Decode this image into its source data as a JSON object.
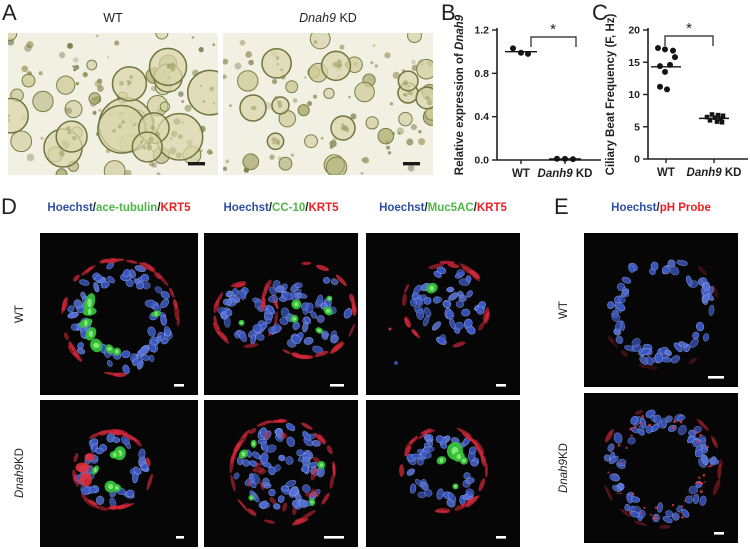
{
  "colors": {
    "text": "#231F20",
    "hoechst_blue": "#2E4FA3",
    "marker_green": "#4DB648",
    "marker_red": "#EC2024",
    "point_black": "#141414",
    "scalebar_brightfield": "#1A1A1A",
    "scalebar_confocal": "#FFFFFF"
  },
  "panel_a": {
    "label": "A",
    "images": [
      {
        "title_parts": [
          {
            "t": "WT"
          }
        ]
      },
      {
        "title_parts": [
          {
            "t": "Dnah9",
            "i": true
          },
          {
            "t": " KD"
          }
        ]
      }
    ]
  },
  "panel_b": {
    "label": "B"
  },
  "panel_c": {
    "label": "C"
  },
  "panel_d": {
    "label": "D",
    "column_headers": [
      [
        {
          "t": "Hoechst",
          "c": "#2E4FA3"
        },
        {
          "t": "/"
        },
        {
          "t": "ace-tubulin",
          "c": "#4DB648"
        },
        {
          "t": "/"
        },
        {
          "t": "KRT5",
          "c": "#EC2024"
        }
      ],
      [
        {
          "t": "Hoechst",
          "c": "#2E4FA3"
        },
        {
          "t": "/"
        },
        {
          "t": "CC-10",
          "c": "#4DB648"
        },
        {
          "t": "/"
        },
        {
          "t": "KRT5",
          "c": "#EC2024"
        }
      ],
      [
        {
          "t": "Hoechst",
          "c": "#2E4FA3"
        },
        {
          "t": "/"
        },
        {
          "t": "Muc5AC",
          "c": "#4DB648"
        },
        {
          "t": "/"
        },
        {
          "t": "KRT5",
          "c": "#EC2024"
        }
      ]
    ],
    "row_labels": [
      [
        {
          "t": "WT"
        }
      ],
      [
        {
          "t": "Dnah9",
          "i": true
        },
        {
          "t": " KD"
        }
      ]
    ]
  },
  "panel_e": {
    "label": "E",
    "header": [
      {
        "t": "Hoechst",
        "c": "#2E4FA3"
      },
      {
        "t": "/"
      },
      {
        "t": "pH Probe",
        "c": "#EC2024"
      }
    ],
    "row_labels": [
      [
        {
          "t": "WT"
        }
      ],
      [
        {
          "t": "Dnah9",
          "i": true
        },
        {
          "t": " KD"
        }
      ]
    ]
  },
  "chart_data": [
    {
      "id": "B",
      "type": "scatter",
      "title": "",
      "ylabel_parts": [
        {
          "t": "Relative expression of "
        },
        {
          "t": "Dnah9",
          "i": true
        }
      ],
      "ylabel_text": "Relative expression of Dnah9",
      "ylim": [
        0,
        1.2
      ],
      "yticks": [
        0,
        0.4,
        0.8,
        1.2
      ],
      "ytick_labels": [
        "0.0",
        "0.4",
        "0.8",
        "1.2"
      ],
      "categories": [
        [
          {
            "t": "WT"
          }
        ],
        [
          {
            "t": "Danh9",
            "i": true
          },
          {
            "t": " KD"
          }
        ]
      ],
      "series": [
        {
          "name": "WT",
          "marker": "circle",
          "values": [
            1.03,
            0.99,
            0.98
          ],
          "mean": 1.0
        },
        {
          "name": "Danh9 KD",
          "marker": "circle",
          "values": [
            0.012,
            0.01,
            0.008
          ],
          "mean": 0.01
        }
      ],
      "significance": "*",
      "grid": false,
      "legend": "none"
    },
    {
      "id": "C",
      "type": "scatter",
      "title": "",
      "ylabel_parts": [
        {
          "t": "Ciliary Beat Frequency (F, Hz)"
        }
      ],
      "ylabel_text": "Ciliary Beat Frequency (F, Hz)",
      "ylim": [
        0,
        20
      ],
      "yticks": [
        0,
        5,
        10,
        15,
        20
      ],
      "ytick_labels": [
        "0",
        "5",
        "10",
        "15",
        "20"
      ],
      "categories": [
        [
          {
            "t": "WT"
          }
        ],
        [
          {
            "t": "Danh9",
            "i": true
          },
          {
            "t": " KD"
          }
        ]
      ],
      "series": [
        {
          "name": "WT",
          "marker": "circle",
          "values": [
            17.2,
            17.0,
            16.8,
            15.8,
            14.6,
            14.4,
            13.5,
            11.2,
            10.8
          ],
          "mean": 14.3
        },
        {
          "name": "Danh9 KD",
          "marker": "square",
          "values": [
            6.9,
            6.8,
            6.7,
            6.5,
            6.4,
            6.2,
            6.0,
            5.8,
            5.7
          ],
          "mean": 6.3
        }
      ],
      "significance": "*",
      "grid": false,
      "legend": "none"
    }
  ]
}
